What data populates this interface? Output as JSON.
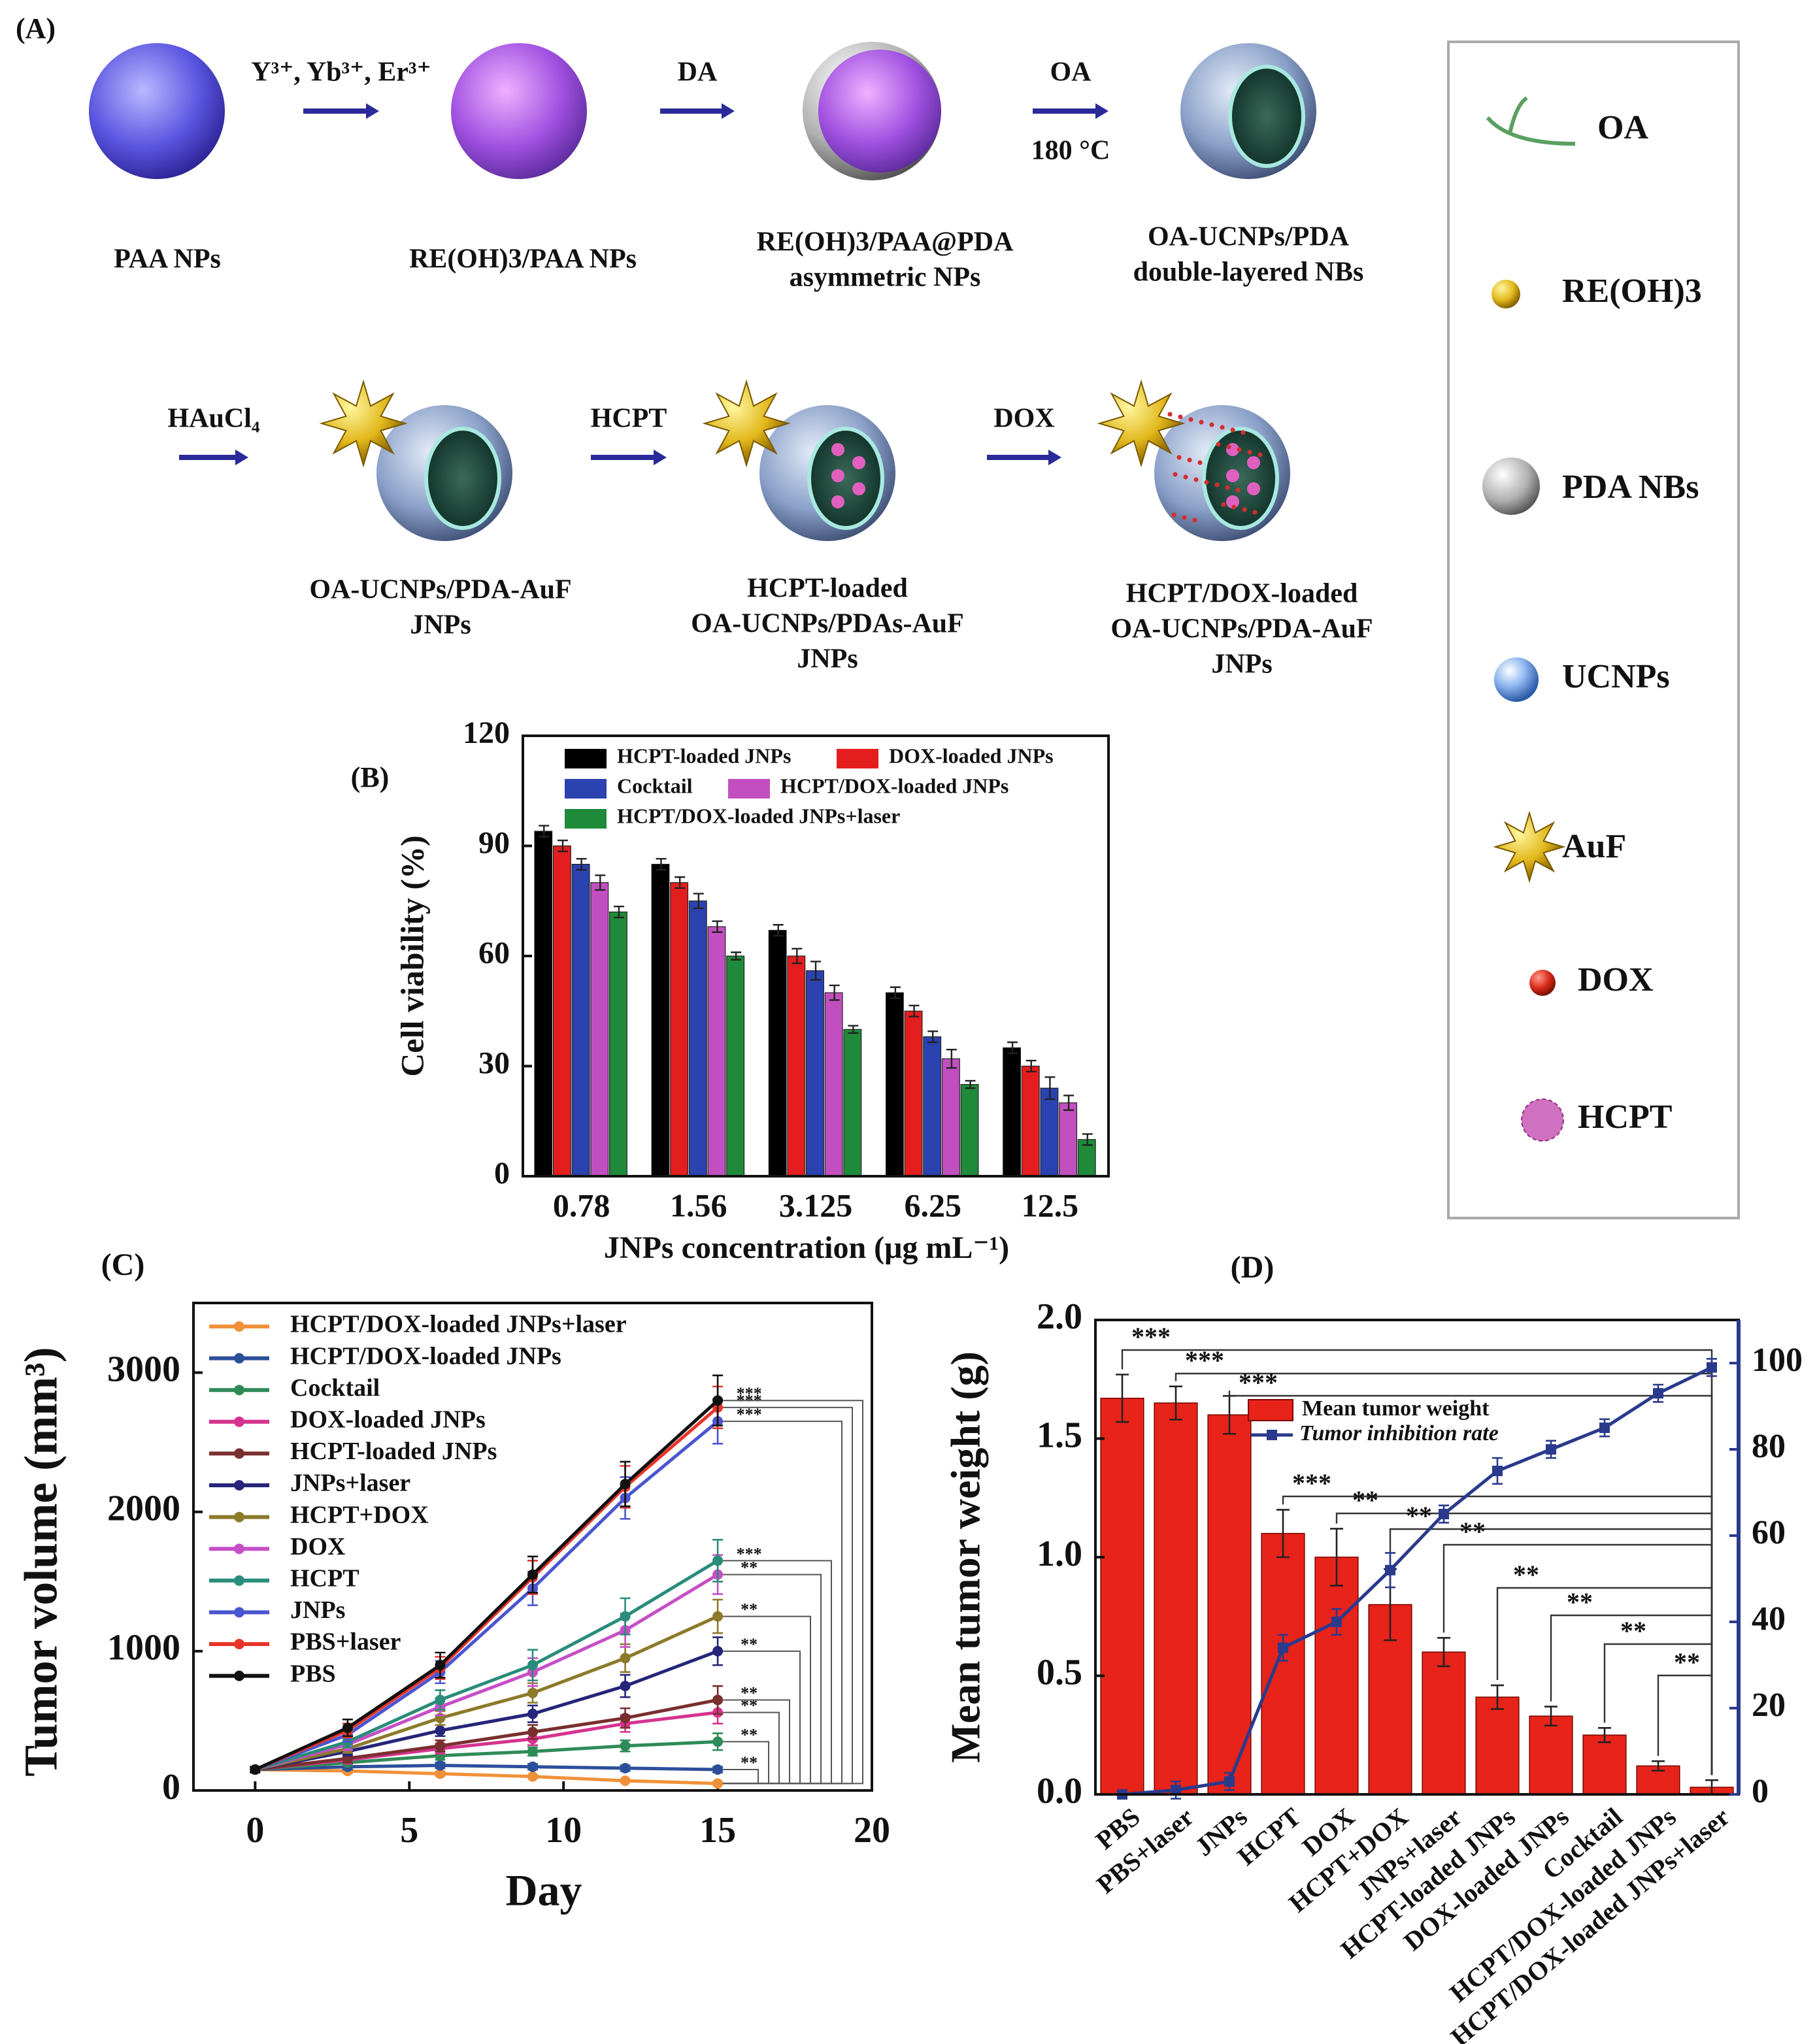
{
  "scheme": {
    "label": "(A)",
    "nodes": [
      {
        "label": [
          "PAA NPs"
        ]
      },
      {
        "label": [
          "RE(OH)3/PAA NPs"
        ]
      },
      {
        "label": [
          "RE(OH)3/PAA@PDA",
          "asymmetric NPs"
        ]
      },
      {
        "label": [
          "OA-UCNPs/PDA",
          "double-layered NBs"
        ]
      },
      {
        "label": [
          "OA-UCNPs/PDA-AuF",
          "JNPs"
        ]
      },
      {
        "label": [
          "HCPT-loaded",
          "OA-UCNPs/PDAs-AuF",
          "JNPs"
        ]
      },
      {
        "label": [
          "HCPT/DOX-loaded",
          "OA-UCNPs/PDA-AuF",
          "JNPs"
        ]
      }
    ],
    "arrows": [
      {
        "above": "Y³⁺, Yb³⁺, Er³⁺"
      },
      {
        "above": "DA"
      },
      {
        "above": "OA",
        "below": "180 °C"
      },
      {
        "above": "HAuCl₄"
      },
      {
        "above": "HCPT"
      },
      {
        "above": "DOX"
      }
    ],
    "legend": [
      "OA",
      "RE(OH)3",
      "PDA NBs",
      "UCNPs",
      "AuF",
      "DOX",
      "HCPT"
    ]
  },
  "chart_data": [
    {
      "type": "bar",
      "label": "(B)",
      "ylabel": "Cell viability (%)",
      "xlabel": "JNPs concentration (μg mL⁻¹)",
      "categories": [
        "0.78",
        "1.56",
        "3.125",
        "6.25",
        "12.5"
      ],
      "ylim": [
        0,
        120
      ],
      "yticks": [
        0,
        30,
        60,
        90,
        120
      ],
      "series": [
        {
          "name": "HCPT-loaded JNPs",
          "color": "#000000",
          "values": [
            94,
            85,
            67,
            50,
            35
          ],
          "errors": [
            1.5,
            1.5,
            1.5,
            1.5,
            1.5
          ]
        },
        {
          "name": "DOX-loaded  JNPs",
          "color": "#e41e1e",
          "values": [
            90,
            80,
            60,
            45,
            30
          ],
          "errors": [
            1.5,
            1.5,
            2,
            1.5,
            1.5
          ]
        },
        {
          "name": "Cocktail",
          "color": "#2a43b0",
          "values": [
            85,
            75,
            56,
            38,
            24
          ],
          "errors": [
            1.5,
            2,
            2.5,
            1.5,
            3
          ]
        },
        {
          "name": "HCPT/DOX-loaded  JNPs",
          "color": "#c24fc0",
          "values": [
            80,
            68,
            50,
            32,
            20
          ],
          "errors": [
            2,
            1.5,
            2,
            2.5,
            2
          ]
        },
        {
          "name": "HCPT/DOX-loaded JNPs+laser",
          "color": "#1f8a3a",
          "values": [
            72,
            60,
            40,
            25,
            10
          ],
          "errors": [
            1.5,
            1,
            1,
            1,
            1.5
          ]
        }
      ]
    },
    {
      "type": "line",
      "label": "(C)",
      "ylabel": "Tumor volume (mm³)",
      "xlabel": "Day",
      "x": [
        0,
        3,
        6,
        9,
        12,
        15
      ],
      "xlim": [
        -2,
        20
      ],
      "xticks": [
        0,
        5,
        10,
        15,
        20
      ],
      "ylim": [
        0,
        3500
      ],
      "yticks": [
        0,
        1000,
        2000,
        3000
      ],
      "series": [
        {
          "name": "HCPT/DOX-loaded JNPs+laser",
          "color": "#f0913a",
          "values": [
            150,
            140,
            120,
            100,
            70,
            50
          ],
          "errors": [
            20,
            15,
            15,
            10,
            10,
            10
          ]
        },
        {
          "name": "HCPT/DOX-loaded JNPs",
          "color": "#2c4f9c",
          "values": [
            150,
            170,
            180,
            170,
            160,
            150
          ],
          "errors": [
            20,
            20,
            20,
            20,
            20,
            20
          ],
          "significance": "**"
        },
        {
          "name": "Cocktail",
          "color": "#2e8b57",
          "values": [
            150,
            200,
            250,
            280,
            320,
            350
          ],
          "errors": [
            20,
            20,
            30,
            30,
            40,
            60
          ],
          "significance": "**"
        },
        {
          "name": "DOX-loaded JNPs",
          "color": "#d6338f",
          "values": [
            150,
            220,
            300,
            370,
            480,
            560
          ],
          "errors": [
            20,
            25,
            35,
            45,
            60,
            80
          ],
          "significance": "**"
        },
        {
          "name": "HCPT-loaded JNPs",
          "color": "#7a2f2f",
          "values": [
            150,
            230,
            320,
            420,
            520,
            650
          ],
          "errors": [
            20,
            30,
            40,
            50,
            70,
            100
          ],
          "significance": "**"
        },
        {
          "name": "JNPs+laser",
          "color": "#25257a",
          "values": [
            150,
            280,
            430,
            550,
            750,
            1000
          ],
          "errors": [
            20,
            30,
            40,
            60,
            80,
            100
          ],
          "significance": "**"
        },
        {
          "name": "HCPT+DOX",
          "color": "#8c7a2a",
          "values": [
            150,
            300,
            520,
            700,
            950,
            1250
          ],
          "errors": [
            20,
            30,
            50,
            70,
            100,
            120
          ],
          "significance": "**"
        },
        {
          "name": "DOX",
          "color": "#c64fc6",
          "values": [
            150,
            330,
            600,
            850,
            1150,
            1550
          ],
          "errors": [
            20,
            40,
            60,
            100,
            120,
            140
          ],
          "significance": "**"
        },
        {
          "name": "HCPT",
          "color": "#2a8c7a",
          "values": [
            150,
            350,
            650,
            900,
            1250,
            1650
          ],
          "errors": [
            20,
            40,
            70,
            110,
            130,
            150
          ],
          "significance": "***"
        },
        {
          "name": "JNPs",
          "color": "#4a56d0",
          "values": [
            150,
            400,
            850,
            1450,
            2100,
            2650
          ],
          "errors": [
            20,
            50,
            80,
            120,
            150,
            160
          ],
          "significance": "***"
        },
        {
          "name": "PBS+laser",
          "color": "#e8352a",
          "values": [
            150,
            430,
            880,
            1530,
            2180,
            2750
          ],
          "errors": [
            20,
            50,
            80,
            120,
            150,
            150
          ],
          "significance": "***"
        },
        {
          "name": "PBS",
          "color": "#111111",
          "values": [
            150,
            450,
            900,
            1550,
            2200,
            2800
          ],
          "errors": [
            20,
            60,
            90,
            130,
            160,
            180
          ],
          "significance": "***"
        }
      ]
    },
    {
      "type": "bar+line",
      "label": "(D)",
      "ylabel": "Mean tumor weight (g)",
      "categories": [
        "PBS",
        "PBS+laser",
        "JNPs",
        "HCPT",
        "DOX",
        "HCPT+DOX",
        "JNPs+laser",
        "HCPT-loaded JNPs",
        "DOX-loaded JNPs",
        "Cocktail",
        "HCPT/DOX-loaded JNPs",
        "HCPT/DOX-loaded JNPs+laser"
      ],
      "ylim": [
        0,
        2
      ],
      "yticks": [
        {
          "value": 0,
          "label": "0.0"
        },
        0.5,
        {
          "value": 1,
          "label": "1.0"
        },
        1.5,
        {
          "value": 2,
          "label": "2.0"
        }
      ],
      "y2lim": [
        0,
        110
      ],
      "y2ticks": [
        0,
        20,
        40,
        60,
        80,
        100
      ],
      "series": [
        {
          "name": "Mean tumor weight",
          "type": "bar",
          "color": "#e8231a",
          "values": [
            1.67,
            1.65,
            1.6,
            1.1,
            1.0,
            0.8,
            0.6,
            0.41,
            0.33,
            0.25,
            0.12,
            0.03
          ],
          "errors": [
            0.1,
            0.07,
            0.08,
            0.1,
            0.12,
            0.15,
            0.06,
            0.05,
            0.04,
            0.03,
            0.02,
            0.03
          ],
          "significance": [
            "***",
            "***",
            "***",
            "***",
            "**",
            "**",
            "**",
            "**",
            "**",
            "**",
            "**",
            null
          ]
        },
        {
          "name": "Tumor inhibition rate",
          "type": "line",
          "axis": "y2",
          "color": "#2a3a8c",
          "values": [
            0,
            1,
            3,
            34,
            40,
            52,
            65,
            75,
            80,
            85,
            93,
            99
          ],
          "errors": [
            1,
            2,
            2,
            3,
            3,
            4,
            2,
            3,
            2,
            2,
            2,
            2
          ]
        }
      ]
    }
  ]
}
